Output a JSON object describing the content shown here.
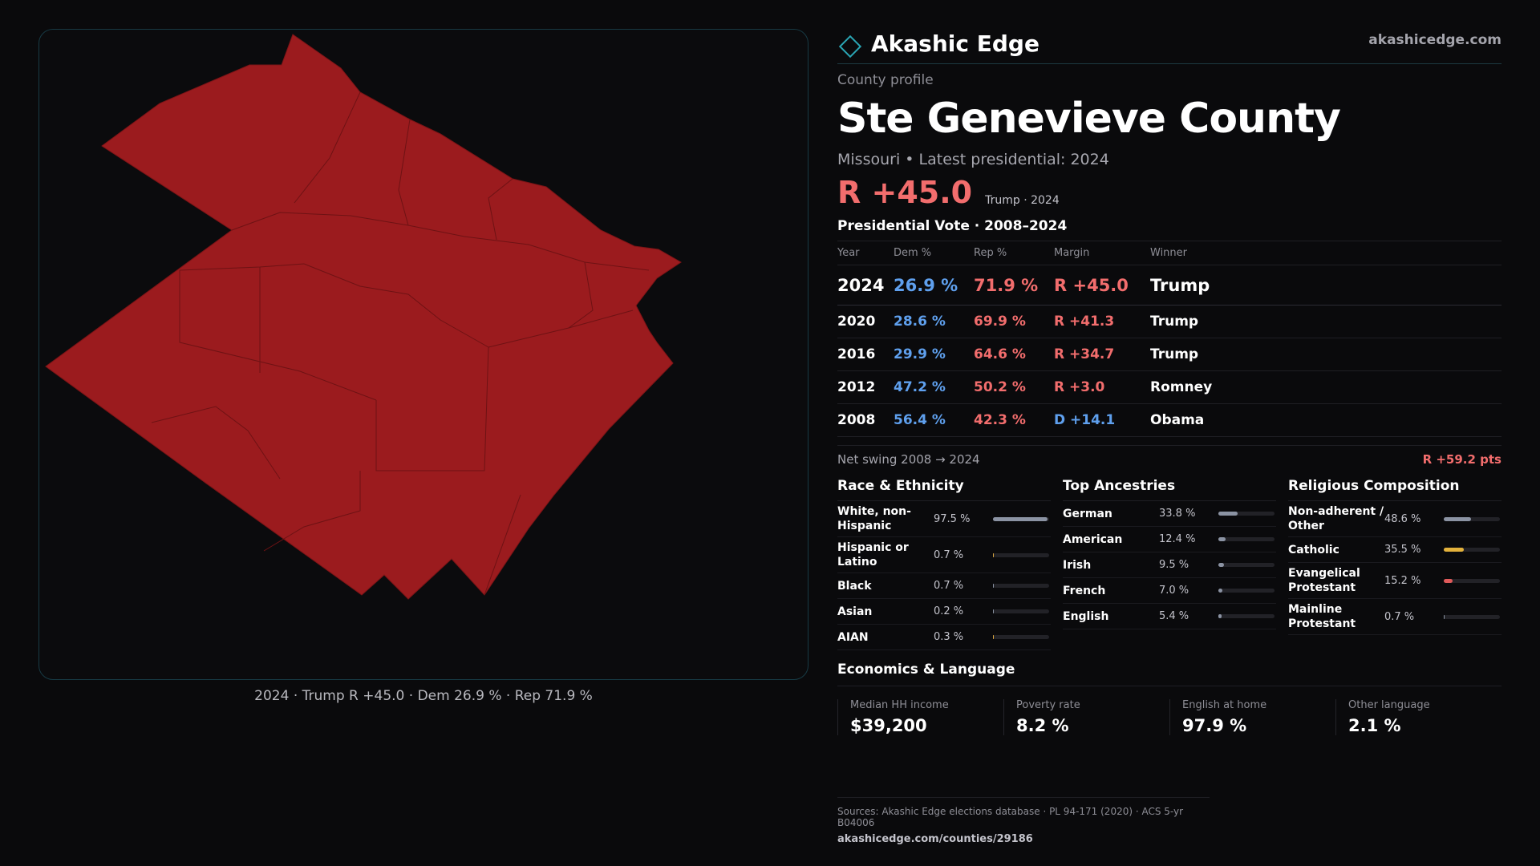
{
  "brand": {
    "name": "Akashic Edge",
    "url": "akashicedge.com"
  },
  "header": {
    "kicker": "County profile",
    "title": "Ste Genevieve County",
    "subtitle": "Missouri • Latest presidential: 2024",
    "margin": "R +45.0",
    "margin_note": "Trump · 2024"
  },
  "map": {
    "caption": "2024 · Trump R +45.0 · Dem 26.9 % · Rep 71.9 %",
    "fill_color": "#9b1b1e"
  },
  "votes": {
    "title": "Presidential Vote · 2008–2024",
    "columns": [
      "Year",
      "Dem %",
      "Rep %",
      "Margin",
      "Winner"
    ],
    "rows": [
      {
        "year": "2024",
        "dem": "26.9 %",
        "rep": "71.9 %",
        "margin": "R +45.0",
        "winner": "Trump"
      },
      {
        "year": "2020",
        "dem": "28.6 %",
        "rep": "69.9 %",
        "margin": "R +41.3",
        "winner": "Trump"
      },
      {
        "year": "2016",
        "dem": "29.9 %",
        "rep": "64.6 %",
        "margin": "R +34.7",
        "winner": "Trump"
      },
      {
        "year": "2012",
        "dem": "47.2 %",
        "rep": "50.2 %",
        "margin": "R +3.0",
        "winner": "Romney"
      },
      {
        "year": "2008",
        "dem": "56.4 %",
        "rep": "42.3 %",
        "margin": "D +14.1",
        "winner": "Obama"
      }
    ],
    "swing_label": "Net swing 2008 → 2024",
    "swing_value": "R +59.2 pts"
  },
  "race": {
    "title": "Race & Ethnicity",
    "items": [
      {
        "label": "White, non-Hispanic",
        "value": "97.5 %",
        "pct": 97.5,
        "color": "#8b93a3"
      },
      {
        "label": "Hispanic or Latino",
        "value": "0.7 %",
        "pct": 0.7,
        "color": "#d9a640"
      },
      {
        "label": "Black",
        "value": "0.7 %",
        "pct": 0.7,
        "color": "#8b93a3"
      },
      {
        "label": "Asian",
        "value": "0.2 %",
        "pct": 0.2,
        "color": "#8b93a3"
      },
      {
        "label": "AIAN",
        "value": "0.3 %",
        "pct": 0.3,
        "color": "#d9a640"
      }
    ]
  },
  "ancestries": {
    "title": "Top Ancestries",
    "items": [
      {
        "label": "German",
        "value": "33.8 %",
        "pct": 33.8,
        "color": "#8b93a3"
      },
      {
        "label": "American",
        "value": "12.4 %",
        "pct": 12.4,
        "color": "#8b93a3"
      },
      {
        "label": "Irish",
        "value": "9.5 %",
        "pct": 9.5,
        "color": "#8b93a3"
      },
      {
        "label": "French",
        "value": "7.0 %",
        "pct": 7.0,
        "color": "#8b93a3"
      },
      {
        "label": "English",
        "value": "5.4 %",
        "pct": 5.4,
        "color": "#8b93a3"
      }
    ]
  },
  "religion": {
    "title": "Religious Composition",
    "items": [
      {
        "label": "Non-adherent / Other",
        "value": "48.6 %",
        "pct": 48.6,
        "color": "#8b93a3"
      },
      {
        "label": "Catholic",
        "value": "35.5 %",
        "pct": 35.5,
        "color": "#e3b23c"
      },
      {
        "label": "Evangelical Protestant",
        "value": "15.2 %",
        "pct": 15.2,
        "color": "#e05a5a"
      },
      {
        "label": "Mainline Protestant",
        "value": "0.7 %",
        "pct": 0.7,
        "color": "#8b93a3"
      }
    ]
  },
  "economics": {
    "title": "Economics & Language",
    "items": [
      {
        "label": "Median HH income",
        "value": "$39,200"
      },
      {
        "label": "Poverty rate",
        "value": "8.2 %"
      },
      {
        "label": "English at home",
        "value": "97.9 %"
      },
      {
        "label": "Other language",
        "value": "2.1 %"
      }
    ]
  },
  "sources": {
    "text": "Sources: Akashic Edge elections database · PL 94-171 (2020) · ACS 5-yr B04006",
    "url": "akashicedge.com/counties/29186"
  }
}
